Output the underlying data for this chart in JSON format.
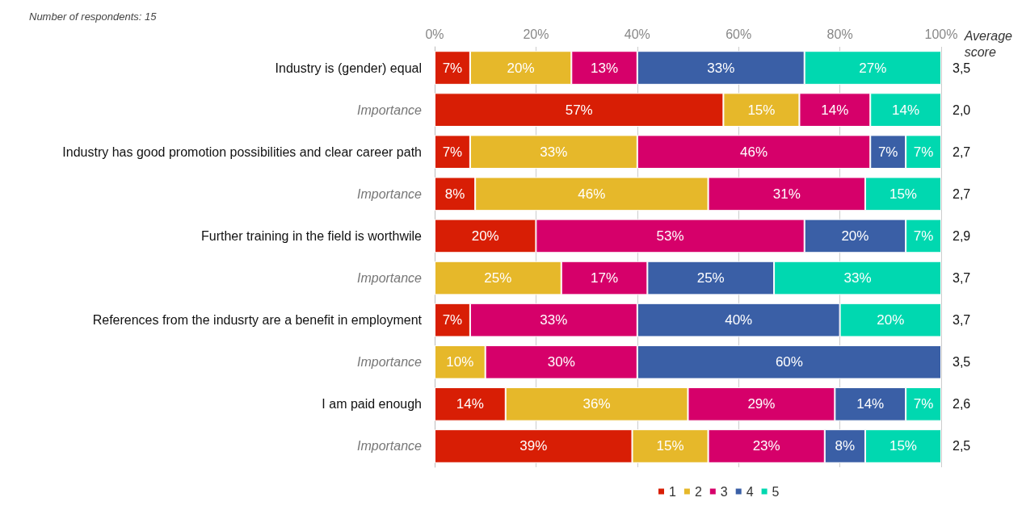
{
  "chart_data": {
    "type": "bar",
    "orientation": "horizontal",
    "stacked": true,
    "categories": [
      "Industry is (gender) equal",
      "Importance",
      "Industry has good promotion possibilities and clear career path",
      "Importance",
      "Further training in the field is worthwile",
      "Importance",
      "References from the indusrty are a benefit in employment",
      "Importance",
      "I am paid enough",
      "Importance"
    ],
    "series": [
      {
        "name": "1",
        "color": "#d81e05",
        "values": [
          7,
          57,
          7,
          8,
          20,
          null,
          7,
          null,
          14,
          39
        ],
        "value_labels": [
          "7%",
          "57%",
          "7%",
          "8%",
          "20%",
          null,
          "7%",
          null,
          "14%",
          "39%"
        ]
      },
      {
        "name": "2",
        "color": "#e6b82a",
        "values": [
          20,
          15,
          33,
          46,
          null,
          25,
          null,
          10,
          36,
          15
        ],
        "value_labels": [
          "20%",
          "15%",
          "33%",
          "46%",
          null,
          "25%",
          null,
          "10%",
          "36%",
          "15%"
        ]
      },
      {
        "name": "3",
        "color": "#d6006a",
        "values": [
          13,
          14,
          46,
          31,
          53,
          17,
          33,
          30,
          29,
          23
        ],
        "value_labels": [
          "13%",
          "14%",
          "46%",
          "31%",
          "53%",
          "17%",
          "33%",
          "30%",
          "29%",
          "23%"
        ]
      },
      {
        "name": "4",
        "color": "#3a5fa6",
        "values": [
          33,
          null,
          7,
          null,
          20,
          25,
          40,
          60,
          14,
          8
        ],
        "value_labels": [
          "33%",
          null,
          "7%",
          null,
          "20%",
          "25%",
          "40%",
          "60%",
          "14%",
          "8%"
        ]
      },
      {
        "name": "5",
        "color": "#00d8b0",
        "values": [
          27,
          14,
          7,
          15,
          7,
          33,
          20,
          null,
          7,
          15
        ],
        "value_labels": [
          "27%",
          "14%",
          "7%",
          "15%",
          "7%",
          "33%",
          "20%",
          null,
          "7%",
          "15%"
        ]
      }
    ],
    "xlim": [
      0,
      100
    ],
    "xticks": [
      {
        "value": 0,
        "label": "0%"
      },
      {
        "value": 20,
        "label": "20%"
      },
      {
        "value": 40,
        "label": "40%"
      },
      {
        "value": 60,
        "label": "60%"
      },
      {
        "value": 80,
        "label": "80%"
      },
      {
        "value": 100,
        "label": "100%"
      }
    ],
    "grid": "x",
    "legend": "bottom",
    "annotations": [
      "Number of respondents: 15",
      "Average score",
      "3,5",
      "2,0",
      "2,7",
      "2,7",
      "2,9",
      "3,7",
      "3,7",
      "3,5",
      "2,6",
      "2,5"
    ]
  }
}
